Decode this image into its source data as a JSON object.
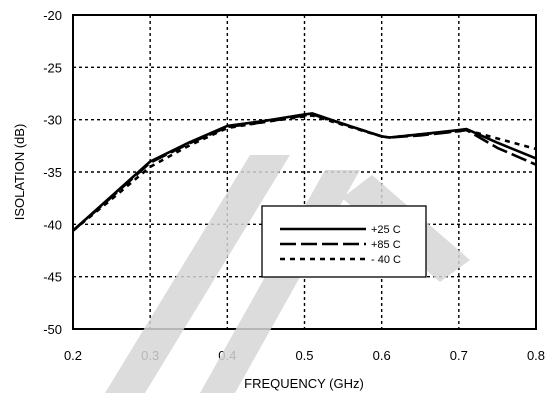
{
  "chart_data": {
    "type": "line",
    "title": "",
    "xlabel": "FREQUENCY (GHz)",
    "ylabel": "ISOLATION (dB)",
    "xlim": [
      0.2,
      0.8
    ],
    "ylim": [
      -50,
      -20
    ],
    "xticks": [
      0.2,
      0.3,
      0.4,
      0.5,
      0.6,
      0.7,
      0.8
    ],
    "yticks": [
      -20,
      -25,
      -30,
      -35,
      -40,
      -45,
      -50
    ],
    "xtick_labels": [
      "0.2",
      "0.3",
      "0.4",
      "0.5",
      "0.6",
      "0.7",
      "0.8"
    ],
    "ytick_labels": [
      "-20",
      "-25",
      "-30",
      "-35",
      "-40",
      "-45",
      "-50"
    ],
    "grid": true,
    "legend_position": "center-right",
    "series": [
      {
        "name": "+25 C",
        "style": "solid",
        "color": "#000000",
        "x": [
          0.2,
          0.25,
          0.3,
          0.35,
          0.4,
          0.45,
          0.5,
          0.51,
          0.55,
          0.6,
          0.61,
          0.65,
          0.7,
          0.71,
          0.75,
          0.8
        ],
        "y": [
          -40.6,
          -37.3,
          -34.0,
          -32.2,
          -30.6,
          -30.1,
          -29.5,
          -29.4,
          -30.4,
          -31.6,
          -31.7,
          -31.4,
          -31.0,
          -30.9,
          -32.2,
          -33.7
        ]
      },
      {
        "name": "+85 C",
        "style": "dashed",
        "color": "#000000",
        "x": [
          0.2,
          0.25,
          0.3,
          0.35,
          0.4,
          0.45,
          0.5,
          0.51,
          0.55,
          0.6,
          0.61,
          0.65,
          0.7,
          0.71,
          0.75,
          0.8
        ],
        "y": [
          -40.6,
          -37.4,
          -34.1,
          -32.3,
          -30.7,
          -30.2,
          -29.6,
          -29.5,
          -30.4,
          -31.6,
          -31.7,
          -31.5,
          -31.1,
          -31.0,
          -32.7,
          -34.3
        ]
      },
      {
        "name": "- 40 C",
        "style": "dotted",
        "color": "#000000",
        "x": [
          0.2,
          0.25,
          0.3,
          0.35,
          0.4,
          0.45,
          0.5,
          0.51,
          0.55,
          0.6,
          0.61,
          0.65,
          0.7,
          0.71,
          0.75,
          0.8
        ],
        "y": [
          -40.6,
          -37.6,
          -34.5,
          -32.5,
          -30.8,
          -30.2,
          -29.7,
          -29.6,
          -30.5,
          -31.6,
          -31.7,
          -31.4,
          -31.1,
          -31.0,
          -31.8,
          -32.8
        ]
      }
    ]
  }
}
